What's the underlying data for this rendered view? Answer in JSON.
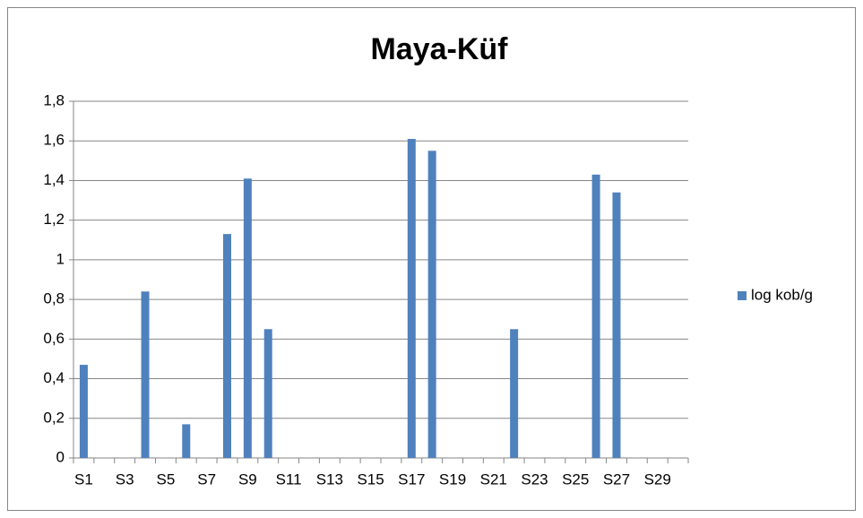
{
  "chart_data": {
    "type": "bar",
    "title": "Maya-Küf",
    "categories": [
      "S1",
      null,
      "S3",
      null,
      "S5",
      null,
      "S7",
      null,
      "S9",
      null,
      "S11",
      null,
      "S13",
      null,
      "S15",
      null,
      "S17",
      null,
      "S19",
      null,
      "S21",
      null,
      "S23",
      null,
      "S25",
      null,
      "S27",
      null,
      "S29",
      null
    ],
    "series": [
      {
        "name": "log kob/g",
        "color": "#4f81bd",
        "values": [
          0.47,
          0,
          0,
          0.84,
          0,
          0.17,
          0,
          1.13,
          1.41,
          0.65,
          0,
          0,
          0,
          0,
          0,
          0,
          1.61,
          1.55,
          0,
          0,
          0,
          0.65,
          0,
          0,
          0,
          1.43,
          1.34,
          0,
          0,
          0
        ]
      }
    ],
    "ylim": [
      0,
      1.8
    ],
    "yticks": [
      0,
      {
        "value": 0.2,
        "label": "0,2"
      },
      {
        "value": 0.4,
        "label": "0,4"
      },
      {
        "value": 0.6,
        "label": "0,6"
      },
      {
        "value": 0.8,
        "label": "0,8"
      },
      1,
      {
        "value": 1.2,
        "label": "1,2"
      },
      {
        "value": 1.4,
        "label": "1,4"
      },
      {
        "value": 1.6,
        "label": "1,6"
      },
      {
        "value": 1.8,
        "label": "1,8"
      }
    ],
    "grid": true,
    "legend": "right"
  }
}
